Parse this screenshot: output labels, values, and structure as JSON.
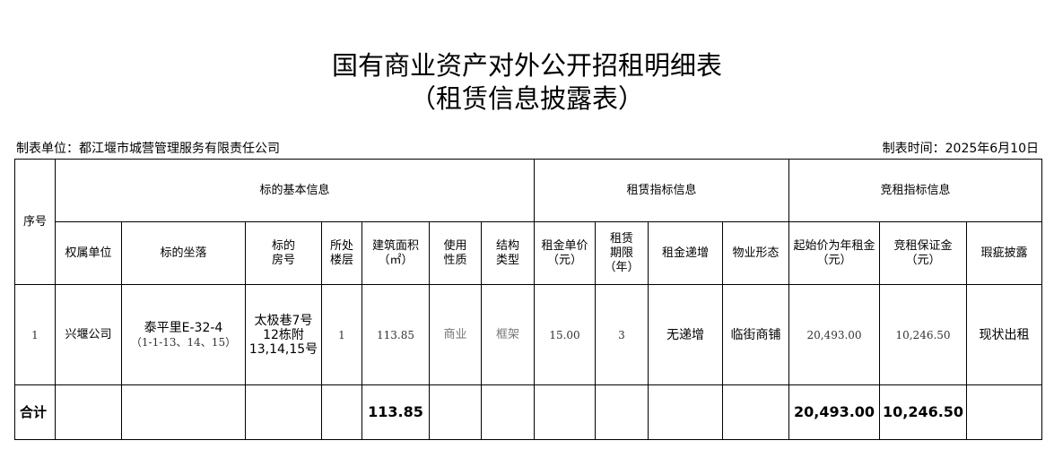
{
  "title_line1": "国有商业资产对外公开招租明细表",
  "title_line2": "（租赁信息披露表）",
  "maker_unit": "制表单位：都江堰市城营管理服务有限责任公司",
  "maker_time": "制表时间：2025年6月10日",
  "groups": {
    "seq": "序号",
    "basic": "标的基本信息",
    "lease": "租赁指标信息",
    "bid": "竞租指标信息"
  },
  "columns": [
    "权属单位",
    "标的坐落",
    "标的\n房号",
    "所处\n楼层",
    "建筑面积\n（㎡）",
    "使用\n性质",
    "结构\n类型",
    "租金单价\n（元）",
    "租赁\n期限\n（年）",
    "租金递增",
    "物业形态",
    "起始价为年租金\n（元）",
    "竞租保证金\n（元）",
    "瑕疵披露"
  ],
  "rows": [
    {
      "seq": "1",
      "owner": "兴堰公司",
      "location_a": "泰平里E-32-4",
      "location_b": "（1-1-13、14、15）",
      "room_a": "太极巷7号",
      "room_b": "12栋附",
      "room_c": "13,14,15号",
      "floor": "1",
      "area": "113.85",
      "use": "商业",
      "structure": "框架",
      "unit_price": "15.00",
      "term": "3",
      "increase": "无递增",
      "form": "临街商铺",
      "start_price": "20,493.00",
      "deposit": "10,246.50",
      "defect": "现状出租"
    }
  ],
  "total": {
    "label": "合计",
    "area": "113.85",
    "start_price": "20,493.00",
    "deposit": "10,246.50"
  }
}
